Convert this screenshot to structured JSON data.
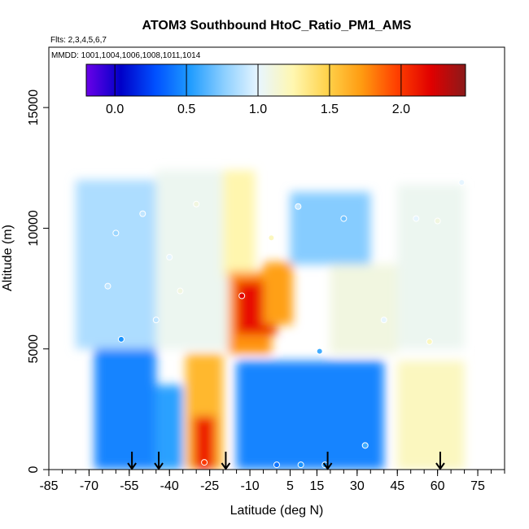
{
  "chart_data": {
    "type": "heatmap",
    "title": "ATOM3 Southbound HtoC_Ratio_PM1_AMS",
    "flights_label": "Flts: 2,3,4,5,6,7",
    "mmdd_label": "MMDD: 1001,1004,1006,1008,1011,1014",
    "xlabel": "Latitude (deg N)",
    "ylabel": "Altitude (m)",
    "xlim": [
      -85,
      85
    ],
    "ylim": [
      0,
      17500
    ],
    "x_ticks": [
      -85,
      -70,
      -55,
      -40,
      -25,
      -10,
      5,
      15,
      30,
      45,
      60,
      75
    ],
    "x_minor_step": 5,
    "y_ticks": [
      0,
      5000,
      10000,
      15000
    ],
    "colorbar": {
      "range": [
        -0.2,
        2.45
      ],
      "ticks": [
        0.0,
        0.5,
        1.0,
        1.5,
        2.0
      ],
      "tick_labels": [
        "0.0",
        "0.5",
        "1.0",
        "1.5",
        "2.0"
      ],
      "colors": [
        "#6a00e8",
        "#0000c8",
        "#0050ff",
        "#1e9bff",
        "#8ccfff",
        "#e8f6ff",
        "#fff7b0",
        "#ffd24a",
        "#ff9a10",
        "#ff4000",
        "#e00000",
        "#8b1a1a"
      ]
    },
    "regions": [
      {
        "lat": [
          -75,
          -45
        ],
        "alt": [
          5000,
          12000
        ],
        "value": 0.85
      },
      {
        "lat": [
          -68,
          -45
        ],
        "alt": [
          0,
          5000
        ],
        "value": 0.45
      },
      {
        "lat": [
          -45,
          -35
        ],
        "alt": [
          0,
          3500
        ],
        "value": 0.55
      },
      {
        "lat": [
          -45,
          -18
        ],
        "alt": [
          5000,
          12400
        ],
        "value": 1.05
      },
      {
        "lat": [
          -34,
          -20
        ],
        "alt": [
          0,
          4800
        ],
        "value": 1.6
      },
      {
        "lat": [
          -31,
          -23
        ],
        "alt": [
          0,
          2200
        ],
        "value": 2.1
      },
      {
        "lat": [
          -20,
          -8
        ],
        "alt": [
          8000,
          12400
        ],
        "value": 1.25
      },
      {
        "lat": [
          -18,
          -2
        ],
        "alt": [
          4800,
          8200
        ],
        "value": 1.75
      },
      {
        "lat": [
          -15,
          0
        ],
        "alt": [
          5600,
          7800
        ],
        "value": 2.15
      },
      {
        "lat": [
          -5,
          6
        ],
        "alt": [
          6000,
          8600
        ],
        "value": 1.7
      },
      {
        "lat": [
          -15,
          40
        ],
        "alt": [
          0,
          4500
        ],
        "value": 0.45
      },
      {
        "lat": [
          5,
          35
        ],
        "alt": [
          8500,
          11500
        ],
        "value": 0.75
      },
      {
        "lat": [
          20,
          45
        ],
        "alt": [
          4800,
          8500
        ],
        "value": 1.1
      },
      {
        "lat": [
          45,
          70
        ],
        "alt": [
          0,
          4500
        ],
        "value": 1.2
      },
      {
        "lat": [
          45,
          70
        ],
        "alt": [
          5000,
          11800
        ],
        "value": 1.05
      }
    ],
    "profile_markers": [
      -54,
      -44,
      -19,
      19,
      61
    ],
    "observations": [
      {
        "lat": -60,
        "alt": 9800,
        "value": 0.8
      },
      {
        "lat": -63,
        "alt": 7600,
        "value": 0.9
      },
      {
        "lat": -58,
        "alt": 5400,
        "value": 0.5
      },
      {
        "lat": -50,
        "alt": 10600,
        "value": 0.9
      },
      {
        "lat": -45,
        "alt": 6200,
        "value": 0.9
      },
      {
        "lat": -40,
        "alt": 8800,
        "value": 1.0
      },
      {
        "lat": -36,
        "alt": 7400,
        "value": 1.1
      },
      {
        "lat": -30,
        "alt": 11000,
        "value": 1.1
      },
      {
        "lat": -27,
        "alt": 300,
        "value": 2.0
      },
      {
        "lat": -13,
        "alt": 7200,
        "value": 2.2
      },
      {
        "lat": -2,
        "alt": 9600,
        "value": 1.2
      },
      {
        "lat": 0,
        "alt": 200,
        "value": 0.4
      },
      {
        "lat": 8,
        "alt": 10900,
        "value": 0.9
      },
      {
        "lat": 9,
        "alt": 200,
        "value": 0.5
      },
      {
        "lat": 16,
        "alt": 4900,
        "value": 0.6
      },
      {
        "lat": 18,
        "alt": 200,
        "value": 0.5
      },
      {
        "lat": 25,
        "alt": 10400,
        "value": 0.7
      },
      {
        "lat": 33,
        "alt": 1000,
        "value": 0.6
      },
      {
        "lat": 40,
        "alt": 6200,
        "value": 1.0
      },
      {
        "lat": 52,
        "alt": 10400,
        "value": 1.0
      },
      {
        "lat": 57,
        "alt": 5300,
        "value": 1.2
      },
      {
        "lat": 60,
        "alt": 10300,
        "value": 1.1
      },
      {
        "lat": 69,
        "alt": 11900,
        "value": 1.0
      }
    ]
  }
}
